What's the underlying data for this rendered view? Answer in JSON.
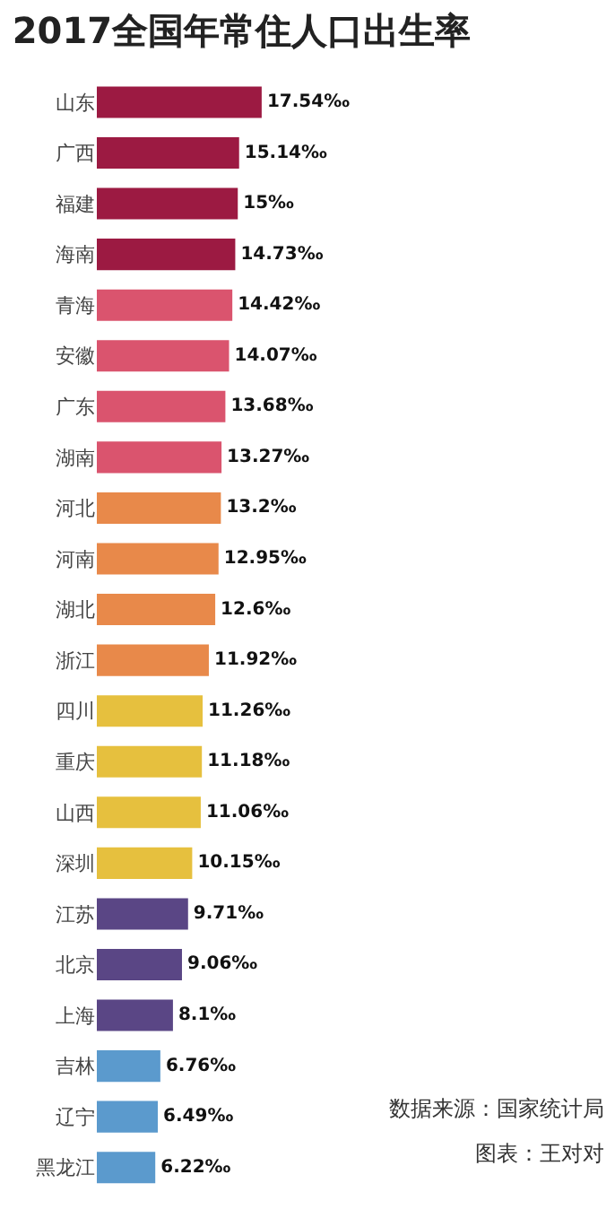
{
  "chart_data": {
    "type": "bar",
    "orientation": "horizontal",
    "title": "2017全国年常住人口出生率",
    "categories": [
      "山东",
      "广西",
      "福建",
      "海南",
      "青海",
      "安徽",
      "广东",
      "湖南",
      "河北",
      "河南",
      "湖北",
      "浙江",
      "四川",
      "重庆",
      "山西",
      "深圳",
      "江苏",
      "北京",
      "上海",
      "吉林",
      "辽宁",
      "黑龙江"
    ],
    "values": [
      17.54,
      15.14,
      15,
      14.73,
      14.42,
      14.07,
      13.68,
      13.27,
      13.2,
      12.95,
      12.6,
      11.92,
      11.26,
      11.18,
      11.06,
      10.15,
      9.71,
      9.06,
      8.1,
      6.76,
      6.49,
      6.22
    ],
    "value_labels": [
      "17.54‰",
      "15.14‰",
      "15‰",
      "14.73‰",
      "14.42‰",
      "14.07‰",
      "13.68‰",
      "13.27‰",
      "13.2‰",
      "12.95‰",
      "12.6‰",
      "11.92‰",
      "11.26‰",
      "11.18‰",
      "11.06‰",
      "10.15‰",
      "9.71‰",
      "9.06‰",
      "8.1‰",
      "6.76‰",
      "6.49‰",
      "6.22‰"
    ],
    "colors": [
      "#9c1a42",
      "#9c1a42",
      "#9c1a42",
      "#9c1a42",
      "#da546e",
      "#da546e",
      "#da546e",
      "#da546e",
      "#e8894a",
      "#e8894a",
      "#e8894a",
      "#e8894a",
      "#e6c03e",
      "#e6c03e",
      "#e6c03e",
      "#e6c03e",
      "#5a4685",
      "#5a4685",
      "#5a4685",
      "#5b9acd",
      "#5b9acd",
      "#5b9acd"
    ],
    "tick_labels": "y",
    "annotations": [
      "数据来源：国家统计局",
      "图表：王对对"
    ]
  }
}
